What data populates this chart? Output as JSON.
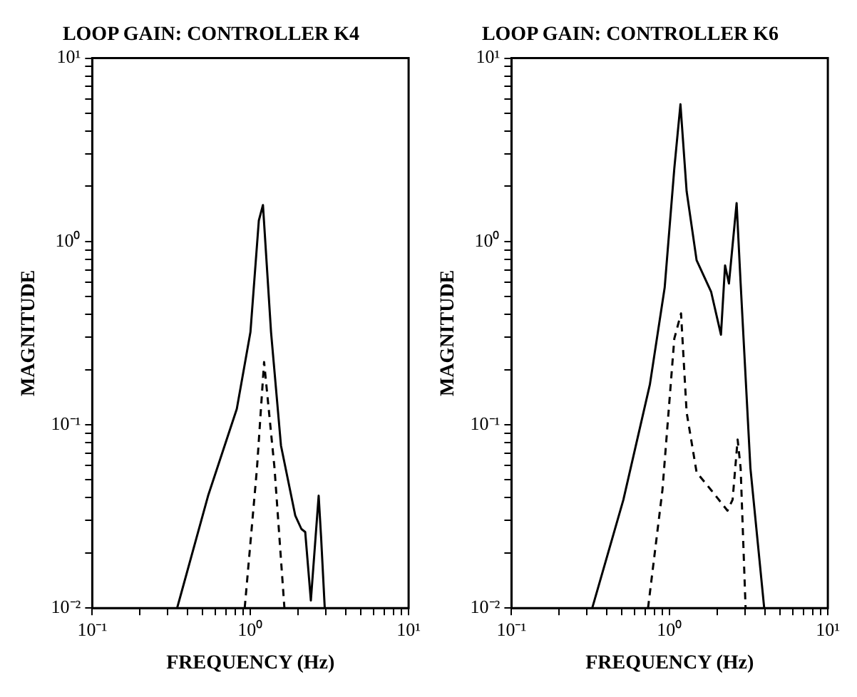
{
  "chart_data": [
    {
      "type": "line",
      "title": "LOOP GAIN: CONTROLLER K4",
      "xlabel": "FREQUENCY (Hz)",
      "ylabel": "MAGNITUDE",
      "log": "xy",
      "grid": false,
      "legend": false,
      "marker": "none",
      "xlim": [
        0.1,
        10
      ],
      "ylim": [
        0.01,
        10
      ],
      "xticks": [
        {
          "value": 0.1,
          "label": "10⁻¹"
        },
        {
          "value": 0.2,
          "label": null
        },
        {
          "value": 0.3,
          "label": null
        },
        {
          "value": 0.4,
          "label": null
        },
        {
          "value": 0.5,
          "label": null
        },
        {
          "value": 0.6,
          "label": null
        },
        {
          "value": 0.7,
          "label": null
        },
        {
          "value": 0.8,
          "label": null
        },
        {
          "value": 0.9,
          "label": null
        },
        {
          "value": 1,
          "label": "10⁰"
        },
        {
          "value": 2,
          "label": null
        },
        {
          "value": 3,
          "label": null
        },
        {
          "value": 4,
          "label": null
        },
        {
          "value": 5,
          "label": null
        },
        {
          "value": 6,
          "label": null
        },
        {
          "value": 7,
          "label": null
        },
        {
          "value": 8,
          "label": null
        },
        {
          "value": 9,
          "label": null
        },
        {
          "value": 10,
          "label": "10¹"
        }
      ],
      "yticks": [
        {
          "value": 0.01,
          "label": "10⁻²"
        },
        {
          "value": 0.02,
          "label": null
        },
        {
          "value": 0.03,
          "label": null
        },
        {
          "value": 0.04,
          "label": null
        },
        {
          "value": 0.05,
          "label": null
        },
        {
          "value": 0.06,
          "label": null
        },
        {
          "value": 0.07,
          "label": null
        },
        {
          "value": 0.08,
          "label": null
        },
        {
          "value": 0.09,
          "label": null
        },
        {
          "value": 0.1,
          "label": "10⁻¹"
        },
        {
          "value": 0.2,
          "label": null
        },
        {
          "value": 0.3,
          "label": null
        },
        {
          "value": 0.4,
          "label": null
        },
        {
          "value": 0.5,
          "label": null
        },
        {
          "value": 0.6,
          "label": null
        },
        {
          "value": 0.7,
          "label": null
        },
        {
          "value": 0.8,
          "label": null
        },
        {
          "value": 0.9,
          "label": null
        },
        {
          "value": 1,
          "label": "10⁰"
        },
        {
          "value": 2,
          "label": null
        },
        {
          "value": 3,
          "label": null
        },
        {
          "value": 4,
          "label": null
        },
        {
          "value": 5,
          "label": null
        },
        {
          "value": 6,
          "label": null
        },
        {
          "value": 7,
          "label": null
        },
        {
          "value": 8,
          "label": null
        },
        {
          "value": 9,
          "label": null
        },
        {
          "value": 10,
          "label": "10¹"
        }
      ],
      "series": [
        {
          "color": "#000000",
          "line_style": "solid",
          "x": [
            0.344,
            0.54,
            0.82,
            1.0,
            1.13,
            1.2,
            1.35,
            1.56,
            1.92,
            2.1,
            2.22,
            2.41,
            2.7,
            2.8,
            2.95
          ],
          "values": [
            0.01,
            0.041,
            0.122,
            0.32,
            1.3,
            1.58,
            0.32,
            0.077,
            0.032,
            0.027,
            0.026,
            0.011,
            0.041,
            0.024,
            0.01
          ]
        },
        {
          "color": "#000000",
          "line_style": "dashed",
          "x": [
            0.92,
            1.1,
            1.22,
            1.42,
            1.64
          ],
          "values": [
            0.01,
            0.058,
            0.22,
            0.058,
            0.01
          ]
        }
      ]
    },
    {
      "type": "line",
      "title": "LOOP GAIN: CONTROLLER K6",
      "xlabel": "FREQUENCY (Hz)",
      "ylabel": "MAGNITUDE",
      "log": "xy",
      "grid": false,
      "legend": false,
      "marker": "none",
      "xlim": [
        0.1,
        10
      ],
      "ylim": [
        0.01,
        10
      ],
      "xticks": [
        {
          "value": 0.1,
          "label": "10⁻¹"
        },
        {
          "value": 0.2,
          "label": null
        },
        {
          "value": 0.3,
          "label": null
        },
        {
          "value": 0.4,
          "label": null
        },
        {
          "value": 0.5,
          "label": null
        },
        {
          "value": 0.6,
          "label": null
        },
        {
          "value": 0.7,
          "label": null
        },
        {
          "value": 0.8,
          "label": null
        },
        {
          "value": 0.9,
          "label": null
        },
        {
          "value": 1,
          "label": "10⁰"
        },
        {
          "value": 2,
          "label": null
        },
        {
          "value": 3,
          "label": null
        },
        {
          "value": 4,
          "label": null
        },
        {
          "value": 5,
          "label": null
        },
        {
          "value": 6,
          "label": null
        },
        {
          "value": 7,
          "label": null
        },
        {
          "value": 8,
          "label": null
        },
        {
          "value": 9,
          "label": null
        },
        {
          "value": 10,
          "label": "10¹"
        }
      ],
      "yticks": [
        {
          "value": 0.01,
          "label": "10⁻²"
        },
        {
          "value": 0.02,
          "label": null
        },
        {
          "value": 0.03,
          "label": null
        },
        {
          "value": 0.04,
          "label": null
        },
        {
          "value": 0.05,
          "label": null
        },
        {
          "value": 0.06,
          "label": null
        },
        {
          "value": 0.07,
          "label": null
        },
        {
          "value": 0.08,
          "label": null
        },
        {
          "value": 0.09,
          "label": null
        },
        {
          "value": 0.1,
          "label": "10⁻¹"
        },
        {
          "value": 0.2,
          "label": null
        },
        {
          "value": 0.3,
          "label": null
        },
        {
          "value": 0.4,
          "label": null
        },
        {
          "value": 0.5,
          "label": null
        },
        {
          "value": 0.6,
          "label": null
        },
        {
          "value": 0.7,
          "label": null
        },
        {
          "value": 0.8,
          "label": null
        },
        {
          "value": 0.9,
          "label": null
        },
        {
          "value": 1,
          "label": "10⁰"
        },
        {
          "value": 2,
          "label": null
        },
        {
          "value": 3,
          "label": null
        },
        {
          "value": 4,
          "label": null
        },
        {
          "value": 5,
          "label": null
        },
        {
          "value": 6,
          "label": null
        },
        {
          "value": 7,
          "label": null
        },
        {
          "value": 8,
          "label": null
        },
        {
          "value": 9,
          "label": null
        },
        {
          "value": 10,
          "label": "10¹"
        }
      ],
      "series": [
        {
          "color": "#000000",
          "line_style": "solid",
          "x": [
            0.324,
            0.51,
            0.75,
            0.93,
            1.07,
            1.17,
            1.28,
            1.48,
            1.83,
            2.11,
            2.24,
            2.37,
            2.65,
            2.81,
            3.24,
            3.96
          ],
          "values": [
            0.01,
            0.039,
            0.166,
            0.56,
            2.5,
            5.6,
            1.88,
            0.79,
            0.53,
            0.31,
            0.74,
            0.59,
            1.62,
            0.59,
            0.058,
            0.01
          ]
        },
        {
          "color": "#000000",
          "line_style": "dashed",
          "x": [
            0.73,
            0.9,
            1.07,
            1.18,
            1.28,
            1.48,
            1.83,
            2.32,
            2.5,
            2.69,
            2.81,
            3.02
          ],
          "values": [
            0.01,
            0.044,
            0.295,
            0.405,
            0.117,
            0.055,
            0.044,
            0.034,
            0.039,
            0.083,
            0.058,
            0.01
          ]
        }
      ]
    }
  ]
}
